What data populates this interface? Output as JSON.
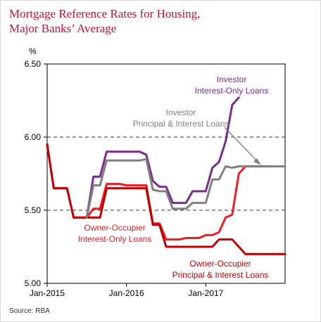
{
  "title_lines": [
    "Mortgage Reference Rates for Housing,",
    "Major Banks’ Average"
  ],
  "source": "Source: RBA",
  "chart_data": {
    "type": "line",
    "ylabel": "%",
    "ylim": [
      5.0,
      6.5
    ],
    "yticks": [
      5.0,
      5.5,
      6.0,
      6.5
    ],
    "ytick_labels": [
      "5.00",
      "5.50",
      "6.00",
      "6.50"
    ],
    "dashed_reference_lines": [
      5.5,
      6.0
    ],
    "xlim": [
      "2015-01",
      "2018-01"
    ],
    "xticks": [
      "2015-01",
      "2016-01",
      "2017-01"
    ],
    "xtick_labels": [
      "Jan-2015",
      "Jan-2016",
      "Jan-2017"
    ],
    "series": [
      {
        "name": "Owner-Occupier Interest-Only Loans",
        "label_lines": [
          "Owner-Occupier",
          "Interest-Only Loans"
        ],
        "color": "#ee1c25",
        "points": [
          [
            "2015-01",
            5.95
          ],
          [
            "2015-02",
            5.65
          ],
          [
            "2015-04",
            5.65
          ],
          [
            "2015-05",
            5.45
          ],
          [
            "2015-07",
            5.45
          ],
          [
            "2015-08",
            5.51
          ],
          [
            "2015-09",
            5.51
          ],
          [
            "2015-10",
            5.68
          ],
          [
            "2015-12",
            5.68
          ],
          [
            "2016-01",
            5.67
          ],
          [
            "2016-04",
            5.67
          ],
          [
            "2016-05",
            5.41
          ],
          [
            "2016-06",
            5.41
          ],
          [
            "2016-07",
            5.3
          ],
          [
            "2016-09",
            5.3
          ],
          [
            "2016-10",
            5.31
          ],
          [
            "2016-12",
            5.31
          ],
          [
            "2017-01",
            5.33
          ],
          [
            "2017-02",
            5.33
          ],
          [
            "2017-03",
            5.35
          ],
          [
            "2017-04",
            5.45
          ],
          [
            "2017-05",
            5.47
          ],
          [
            "2017-06",
            5.75
          ],
          [
            "2017-07",
            5.8
          ],
          [
            "2017-10",
            5.8
          ]
        ]
      },
      {
        "name": "Owner-Occupier Principal & Interest Loans",
        "label_lines": [
          "Owner-Occupier",
          "Principal & Interest Loans"
        ],
        "color": "#c00000",
        "points": [
          [
            "2015-01",
            5.95
          ],
          [
            "2015-02",
            5.65
          ],
          [
            "2015-04",
            5.65
          ],
          [
            "2015-05",
            5.45
          ],
          [
            "2015-07",
            5.45
          ],
          [
            "2015-08",
            5.45
          ],
          [
            "2015-09",
            5.45
          ],
          [
            "2015-10",
            5.65
          ],
          [
            "2016-04",
            5.65
          ],
          [
            "2016-05",
            5.4
          ],
          [
            "2016-06",
            5.4
          ],
          [
            "2016-07",
            5.25
          ],
          [
            "2017-02",
            5.25
          ],
          [
            "2017-03",
            5.3
          ],
          [
            "2017-05",
            5.3
          ],
          [
            "2017-06",
            5.25
          ],
          [
            "2017-07",
            5.2
          ],
          [
            "2018-01",
            5.2
          ]
        ]
      },
      {
        "name": "Investor Interest-Only Loans",
        "label_lines": [
          "Investor",
          "Interest-Only Loans"
        ],
        "color": "#7b2b8f",
        "points": [
          [
            "2015-07",
            5.45
          ],
          [
            "2015-08",
            5.73
          ],
          [
            "2015-09",
            5.73
          ],
          [
            "2015-10",
            5.9
          ],
          [
            "2016-03",
            5.9
          ],
          [
            "2016-04",
            5.88
          ],
          [
            "2016-05",
            5.7
          ],
          [
            "2016-06",
            5.66
          ],
          [
            "2016-07",
            5.66
          ],
          [
            "2016-08",
            5.55
          ],
          [
            "2016-10",
            5.55
          ],
          [
            "2016-11",
            5.63
          ],
          [
            "2017-01",
            5.63
          ],
          [
            "2017-02",
            5.79
          ],
          [
            "2017-03",
            5.83
          ],
          [
            "2017-04",
            5.97
          ],
          [
            "2017-05",
            6.22
          ],
          [
            "2017-06",
            6.27
          ]
        ]
      },
      {
        "name": "Investor Principal & Interest Loans",
        "label_lines": [
          "Investor",
          "Principal & Interest Loans"
        ],
        "color": "#808080",
        "points": [
          [
            "2015-07",
            5.45
          ],
          [
            "2015-08",
            5.67
          ],
          [
            "2015-09",
            5.67
          ],
          [
            "2015-10",
            5.84
          ],
          [
            "2016-03",
            5.84
          ],
          [
            "2016-04",
            5.85
          ],
          [
            "2016-05",
            5.64
          ],
          [
            "2016-06",
            5.63
          ],
          [
            "2016-07",
            5.63
          ],
          [
            "2016-08",
            5.51
          ],
          [
            "2016-10",
            5.51
          ],
          [
            "2016-11",
            5.55
          ],
          [
            "2017-01",
            5.55
          ],
          [
            "2017-02",
            5.71
          ],
          [
            "2017-03",
            5.71
          ],
          [
            "2017-04",
            5.8
          ],
          [
            "2017-05",
            5.79
          ],
          [
            "2017-06",
            5.8
          ],
          [
            "2018-01",
            5.8
          ]
        ]
      }
    ]
  }
}
